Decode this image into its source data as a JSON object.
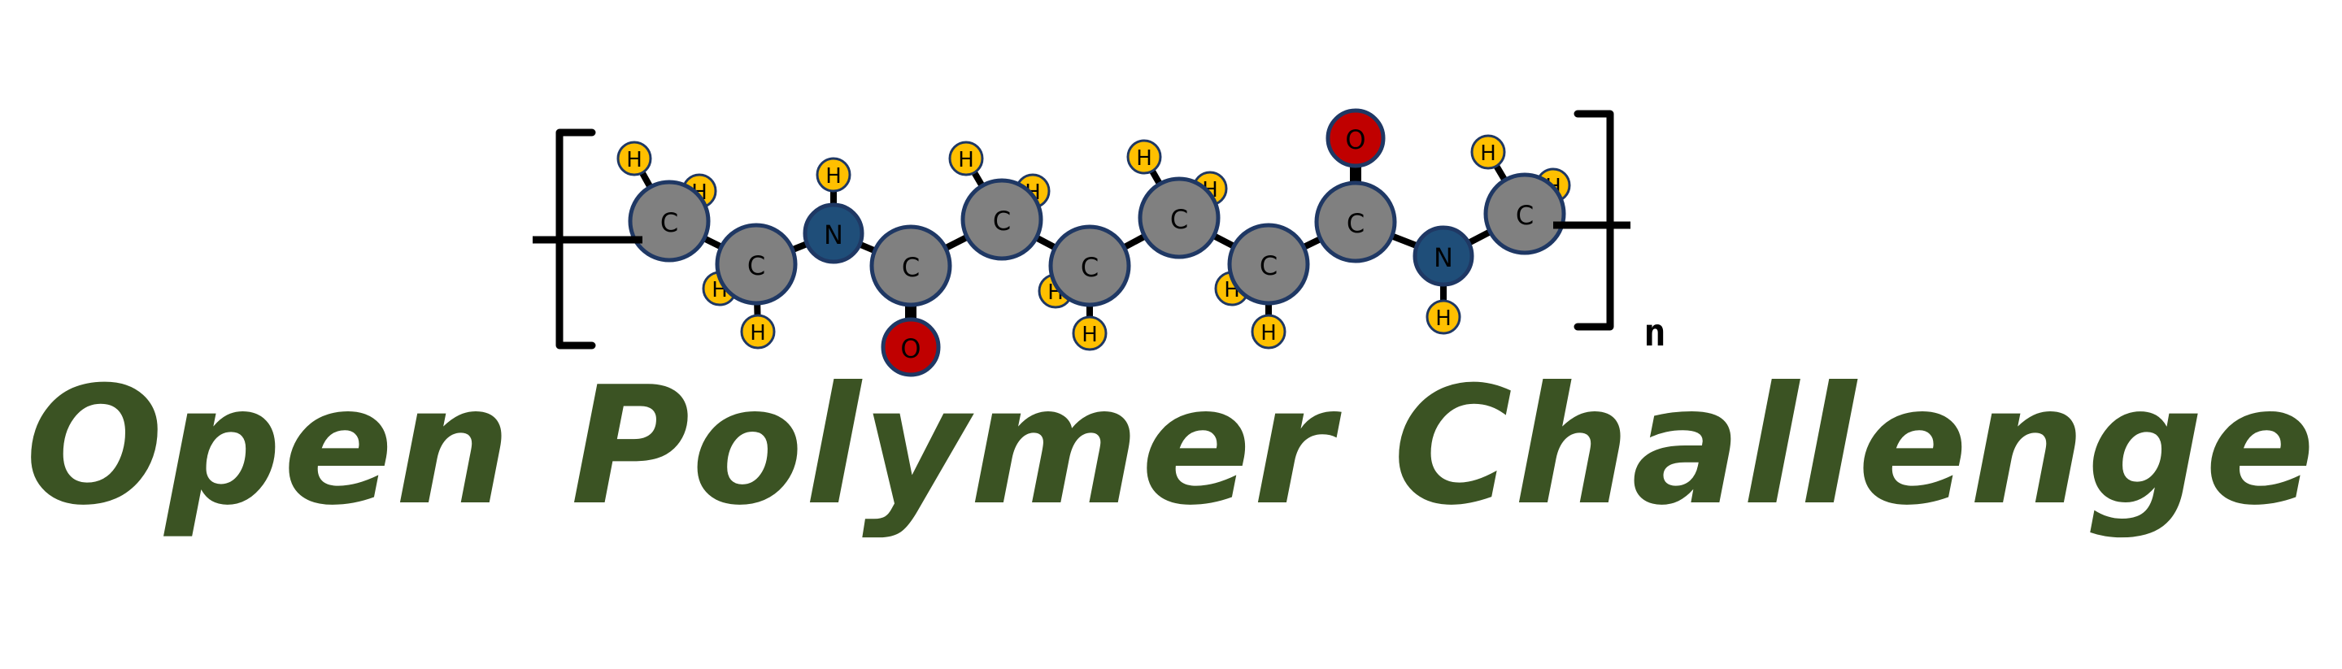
{
  "colors": {
    "carbon": "#808080",
    "nitrogen": "#1f4e79",
    "oxygen": "#c00000",
    "hydrogen": "#ffc000",
    "atom_outline": "#1f3864",
    "bond": "#000000",
    "title": "#3b5323"
  },
  "atom_labels": {
    "carbon": "C",
    "nitrogen": "N",
    "oxygen": "O",
    "hydrogen": "H"
  },
  "repeat_subscript": "n",
  "title": "Open Polymer Challenge"
}
